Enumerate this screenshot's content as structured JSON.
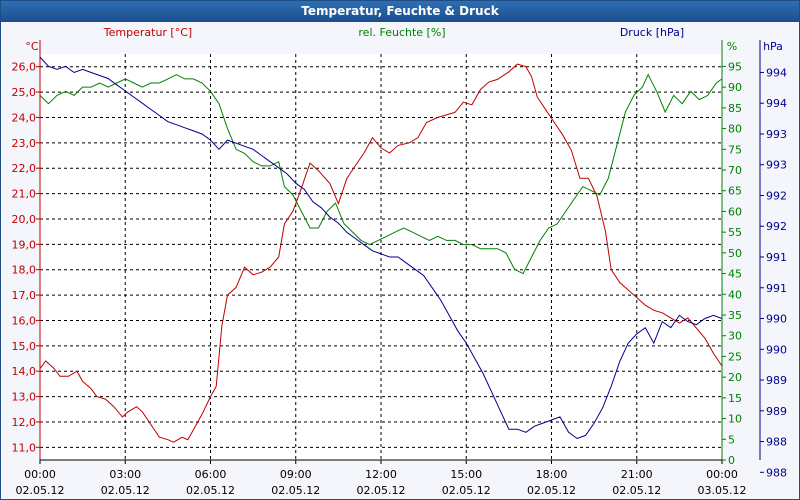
{
  "window": {
    "title": "Temperatur, Feuchte & Druck"
  },
  "chart_data": {
    "type": "line",
    "title": "Temperatur, Feuchte & Druck",
    "x_ticks": [
      {
        "time": "00:00",
        "date": "02.05.12"
      },
      {
        "time": "03:00",
        "date": "02.05.12"
      },
      {
        "time": "06:00",
        "date": "02.05.12"
      },
      {
        "time": "09:00",
        "date": "02.05.12"
      },
      {
        "time": "12:00",
        "date": "02.05.12"
      },
      {
        "time": "15:00",
        "date": "02.05.12"
      },
      {
        "time": "18:00",
        "date": "02.05.12"
      },
      {
        "time": "21:00",
        "date": "02.05.12"
      },
      {
        "time": "00:00",
        "date": "03.05.12"
      }
    ],
    "x_range_hours": [
      0,
      24
    ],
    "grid": true,
    "axes": {
      "temperature": {
        "unit": "°C",
        "range": [
          10.5,
          26.5
        ],
        "ticks": [
          "26,0",
          "25,0",
          "24,0",
          "23,0",
          "22,0",
          "21,0",
          "20,0",
          "19,0",
          "18,0",
          "17,0",
          "16,0",
          "15,0",
          "14,0",
          "13,0",
          "12,0",
          "11,0"
        ],
        "tick_values": [
          26,
          25,
          24,
          23,
          22,
          21,
          20,
          19,
          18,
          17,
          16,
          15,
          14,
          13,
          12,
          11
        ],
        "color": "#c00000"
      },
      "humidity": {
        "unit": "%",
        "range": [
          0,
          98
        ],
        "ticks": [
          "95",
          "90",
          "85",
          "80",
          "75",
          "70",
          "65",
          "60",
          "55",
          "50",
          "45",
          "40",
          "35",
          "30",
          "25",
          "20",
          "15",
          "10",
          "5",
          "0"
        ],
        "tick_values": [
          95,
          90,
          85,
          80,
          75,
          70,
          65,
          60,
          55,
          50,
          45,
          40,
          35,
          30,
          25,
          20,
          15,
          10,
          5,
          0
        ],
        "color": "#008000"
      },
      "pressure": {
        "unit": "hPa",
        "range": [
          987.7,
          994.3
        ],
        "ticks": [
          "994",
          "994",
          "993",
          "993",
          "992",
          "992",
          "991",
          "991",
          "990",
          "990",
          "989",
          "989",
          "988",
          "988"
        ],
        "tick_values": [
          994.0,
          993.5,
          993.0,
          992.5,
          992.0,
          991.5,
          991.0,
          990.5,
          990.0,
          989.5,
          989.0,
          988.5,
          988.0,
          987.5
        ],
        "color": "#000090"
      }
    },
    "series": [
      {
        "name": "Temperatur [°C]",
        "axis": "temperature",
        "color": "#c00000",
        "points": [
          [
            0,
            14.1
          ],
          [
            0.2,
            14.4
          ],
          [
            0.5,
            14.1
          ],
          [
            0.7,
            13.8
          ],
          [
            1.0,
            13.8
          ],
          [
            1.3,
            14.0
          ],
          [
            1.5,
            13.6
          ],
          [
            1.8,
            13.3
          ],
          [
            2.0,
            13.0
          ],
          [
            2.3,
            12.9
          ],
          [
            2.6,
            12.6
          ],
          [
            2.9,
            12.2
          ],
          [
            3.1,
            12.4
          ],
          [
            3.4,
            12.6
          ],
          [
            3.6,
            12.4
          ],
          [
            3.9,
            11.9
          ],
          [
            4.2,
            11.4
          ],
          [
            4.5,
            11.3
          ],
          [
            4.7,
            11.2
          ],
          [
            5.0,
            11.4
          ],
          [
            5.2,
            11.3
          ],
          [
            5.4,
            11.7
          ],
          [
            5.7,
            12.3
          ],
          [
            6.0,
            13.0
          ],
          [
            6.2,
            13.4
          ],
          [
            6.4,
            15.8
          ],
          [
            6.6,
            17.0
          ],
          [
            6.9,
            17.3
          ],
          [
            7.2,
            18.1
          ],
          [
            7.5,
            17.8
          ],
          [
            7.8,
            17.9
          ],
          [
            8.1,
            18.1
          ],
          [
            8.4,
            18.5
          ],
          [
            8.6,
            19.8
          ],
          [
            8.9,
            20.3
          ],
          [
            9.1,
            20.9
          ],
          [
            9.5,
            22.2
          ],
          [
            9.8,
            21.9
          ],
          [
            10.2,
            21.4
          ],
          [
            10.5,
            20.6
          ],
          [
            10.8,
            21.6
          ],
          [
            11.1,
            22.1
          ],
          [
            11.4,
            22.6
          ],
          [
            11.7,
            23.2
          ],
          [
            12.0,
            22.8
          ],
          [
            12.3,
            22.6
          ],
          [
            12.6,
            22.9
          ],
          [
            13.0,
            23.0
          ],
          [
            13.3,
            23.2
          ],
          [
            13.6,
            23.8
          ],
          [
            14.0,
            24.0
          ],
          [
            14.3,
            24.1
          ],
          [
            14.6,
            24.2
          ],
          [
            14.9,
            24.6
          ],
          [
            15.2,
            24.5
          ],
          [
            15.5,
            25.1
          ],
          [
            15.8,
            25.4
          ],
          [
            16.1,
            25.5
          ],
          [
            16.5,
            25.8
          ],
          [
            16.8,
            26.1
          ],
          [
            17.1,
            26.0
          ],
          [
            17.3,
            25.6
          ],
          [
            17.5,
            24.8
          ],
          [
            17.8,
            24.3
          ],
          [
            18.1,
            23.8
          ],
          [
            18.4,
            23.3
          ],
          [
            18.7,
            22.7
          ],
          [
            19.0,
            21.6
          ],
          [
            19.3,
            21.6
          ],
          [
            19.6,
            20.9
          ],
          [
            19.9,
            19.5
          ],
          [
            20.1,
            18.0
          ],
          [
            20.4,
            17.5
          ],
          [
            20.7,
            17.2
          ],
          [
            21.0,
            16.9
          ],
          [
            21.3,
            16.6
          ],
          [
            21.6,
            16.4
          ],
          [
            21.9,
            16.3
          ],
          [
            22.2,
            16.1
          ],
          [
            22.5,
            15.9
          ],
          [
            22.8,
            16.1
          ],
          [
            23.1,
            15.7
          ],
          [
            23.4,
            15.3
          ],
          [
            23.7,
            14.7
          ],
          [
            24.0,
            14.2
          ]
        ]
      },
      {
        "name": "rel. Feuchte [%]",
        "axis": "humidity",
        "color": "#008000",
        "points": [
          [
            0,
            88
          ],
          [
            0.3,
            86
          ],
          [
            0.6,
            88
          ],
          [
            0.9,
            89
          ],
          [
            1.2,
            88
          ],
          [
            1.5,
            90
          ],
          [
            1.8,
            90
          ],
          [
            2.1,
            91
          ],
          [
            2.4,
            90
          ],
          [
            2.7,
            91
          ],
          [
            3.0,
            92
          ],
          [
            3.3,
            91
          ],
          [
            3.6,
            90
          ],
          [
            3.9,
            91
          ],
          [
            4.2,
            91
          ],
          [
            4.5,
            92
          ],
          [
            4.8,
            93
          ],
          [
            5.1,
            92
          ],
          [
            5.4,
            92
          ],
          [
            5.7,
            91
          ],
          [
            6.0,
            89
          ],
          [
            6.3,
            86
          ],
          [
            6.6,
            80
          ],
          [
            6.9,
            75
          ],
          [
            7.2,
            74
          ],
          [
            7.5,
            72
          ],
          [
            7.8,
            71
          ],
          [
            8.1,
            71
          ],
          [
            8.4,
            72
          ],
          [
            8.6,
            66
          ],
          [
            8.9,
            64
          ],
          [
            9.2,
            60
          ],
          [
            9.5,
            56
          ],
          [
            9.8,
            56
          ],
          [
            10.1,
            60
          ],
          [
            10.4,
            62
          ],
          [
            10.7,
            57
          ],
          [
            11.0,
            55
          ],
          [
            11.3,
            53
          ],
          [
            11.6,
            52
          ],
          [
            11.9,
            53
          ],
          [
            12.2,
            54
          ],
          [
            12.5,
            55
          ],
          [
            12.8,
            56
          ],
          [
            13.1,
            55
          ],
          [
            13.4,
            54
          ],
          [
            13.7,
            53
          ],
          [
            14.0,
            54
          ],
          [
            14.3,
            53
          ],
          [
            14.6,
            53
          ],
          [
            14.9,
            52
          ],
          [
            15.2,
            52
          ],
          [
            15.5,
            51
          ],
          [
            15.8,
            51
          ],
          [
            16.1,
            51
          ],
          [
            16.4,
            50
          ],
          [
            16.7,
            46
          ],
          [
            17.0,
            45
          ],
          [
            17.3,
            49
          ],
          [
            17.6,
            53
          ],
          [
            17.9,
            56
          ],
          [
            18.2,
            57
          ],
          [
            18.5,
            60
          ],
          [
            18.8,
            63
          ],
          [
            19.1,
            66
          ],
          [
            19.4,
            65
          ],
          [
            19.7,
            64
          ],
          [
            20.0,
            68
          ],
          [
            20.3,
            76
          ],
          [
            20.6,
            84
          ],
          [
            20.9,
            88
          ],
          [
            21.2,
            90
          ],
          [
            21.4,
            93
          ],
          [
            21.7,
            89
          ],
          [
            22.0,
            84
          ],
          [
            22.3,
            88
          ],
          [
            22.6,
            86
          ],
          [
            22.9,
            89
          ],
          [
            23.2,
            87
          ],
          [
            23.5,
            88
          ],
          [
            23.8,
            91
          ],
          [
            24.0,
            92
          ]
        ]
      },
      {
        "name": "Druck [hPa]",
        "axis": "pressure",
        "color": "#000090",
        "points": [
          [
            0,
            994.25
          ],
          [
            0.3,
            994.1
          ],
          [
            0.6,
            994.05
          ],
          [
            0.9,
            994.1
          ],
          [
            1.2,
            994.0
          ],
          [
            1.5,
            994.05
          ],
          [
            1.8,
            994.0
          ],
          [
            2.1,
            993.95
          ],
          [
            2.4,
            993.9
          ],
          [
            2.7,
            993.8
          ],
          [
            3.0,
            993.7
          ],
          [
            3.3,
            993.6
          ],
          [
            3.6,
            993.5
          ],
          [
            3.9,
            993.4
          ],
          [
            4.2,
            993.3
          ],
          [
            4.5,
            993.2
          ],
          [
            4.8,
            993.15
          ],
          [
            5.1,
            993.1
          ],
          [
            5.4,
            993.05
          ],
          [
            5.7,
            993.0
          ],
          [
            6.0,
            992.9
          ],
          [
            6.3,
            992.75
          ],
          [
            6.6,
            992.9
          ],
          [
            6.9,
            992.85
          ],
          [
            7.2,
            992.8
          ],
          [
            7.5,
            992.75
          ],
          [
            7.8,
            992.65
          ],
          [
            8.1,
            992.55
          ],
          [
            8.4,
            992.45
          ],
          [
            8.7,
            992.35
          ],
          [
            9.0,
            992.2
          ],
          [
            9.3,
            992.1
          ],
          [
            9.6,
            991.9
          ],
          [
            9.9,
            991.8
          ],
          [
            10.2,
            991.65
          ],
          [
            10.5,
            991.55
          ],
          [
            10.8,
            991.4
          ],
          [
            11.1,
            991.3
          ],
          [
            11.4,
            991.2
          ],
          [
            11.7,
            991.1
          ],
          [
            12.0,
            991.05
          ],
          [
            12.3,
            991.0
          ],
          [
            12.6,
            991.0
          ],
          [
            12.9,
            990.9
          ],
          [
            13.2,
            990.8
          ],
          [
            13.5,
            990.7
          ],
          [
            13.8,
            990.5
          ],
          [
            14.1,
            990.3
          ],
          [
            14.4,
            990.05
          ],
          [
            14.7,
            989.8
          ],
          [
            15.0,
            989.6
          ],
          [
            15.3,
            989.35
          ],
          [
            15.6,
            989.1
          ],
          [
            15.9,
            988.8
          ],
          [
            16.2,
            988.5
          ],
          [
            16.5,
            988.2
          ],
          [
            16.8,
            988.2
          ],
          [
            17.1,
            988.15
          ],
          [
            17.4,
            988.25
          ],
          [
            17.7,
            988.3
          ],
          [
            18.0,
            988.35
          ],
          [
            18.3,
            988.4
          ],
          [
            18.6,
            988.15
          ],
          [
            18.9,
            988.05
          ],
          [
            19.2,
            988.1
          ],
          [
            19.5,
            988.3
          ],
          [
            19.8,
            988.55
          ],
          [
            20.1,
            988.9
          ],
          [
            20.4,
            989.3
          ],
          [
            20.7,
            989.6
          ],
          [
            21.0,
            989.75
          ],
          [
            21.3,
            989.85
          ],
          [
            21.6,
            989.6
          ],
          [
            21.9,
            989.95
          ],
          [
            22.2,
            989.85
          ],
          [
            22.5,
            990.05
          ],
          [
            22.8,
            989.95
          ],
          [
            23.1,
            989.9
          ],
          [
            23.4,
            990.0
          ],
          [
            23.7,
            990.05
          ],
          [
            24.0,
            990.0
          ]
        ]
      }
    ]
  }
}
